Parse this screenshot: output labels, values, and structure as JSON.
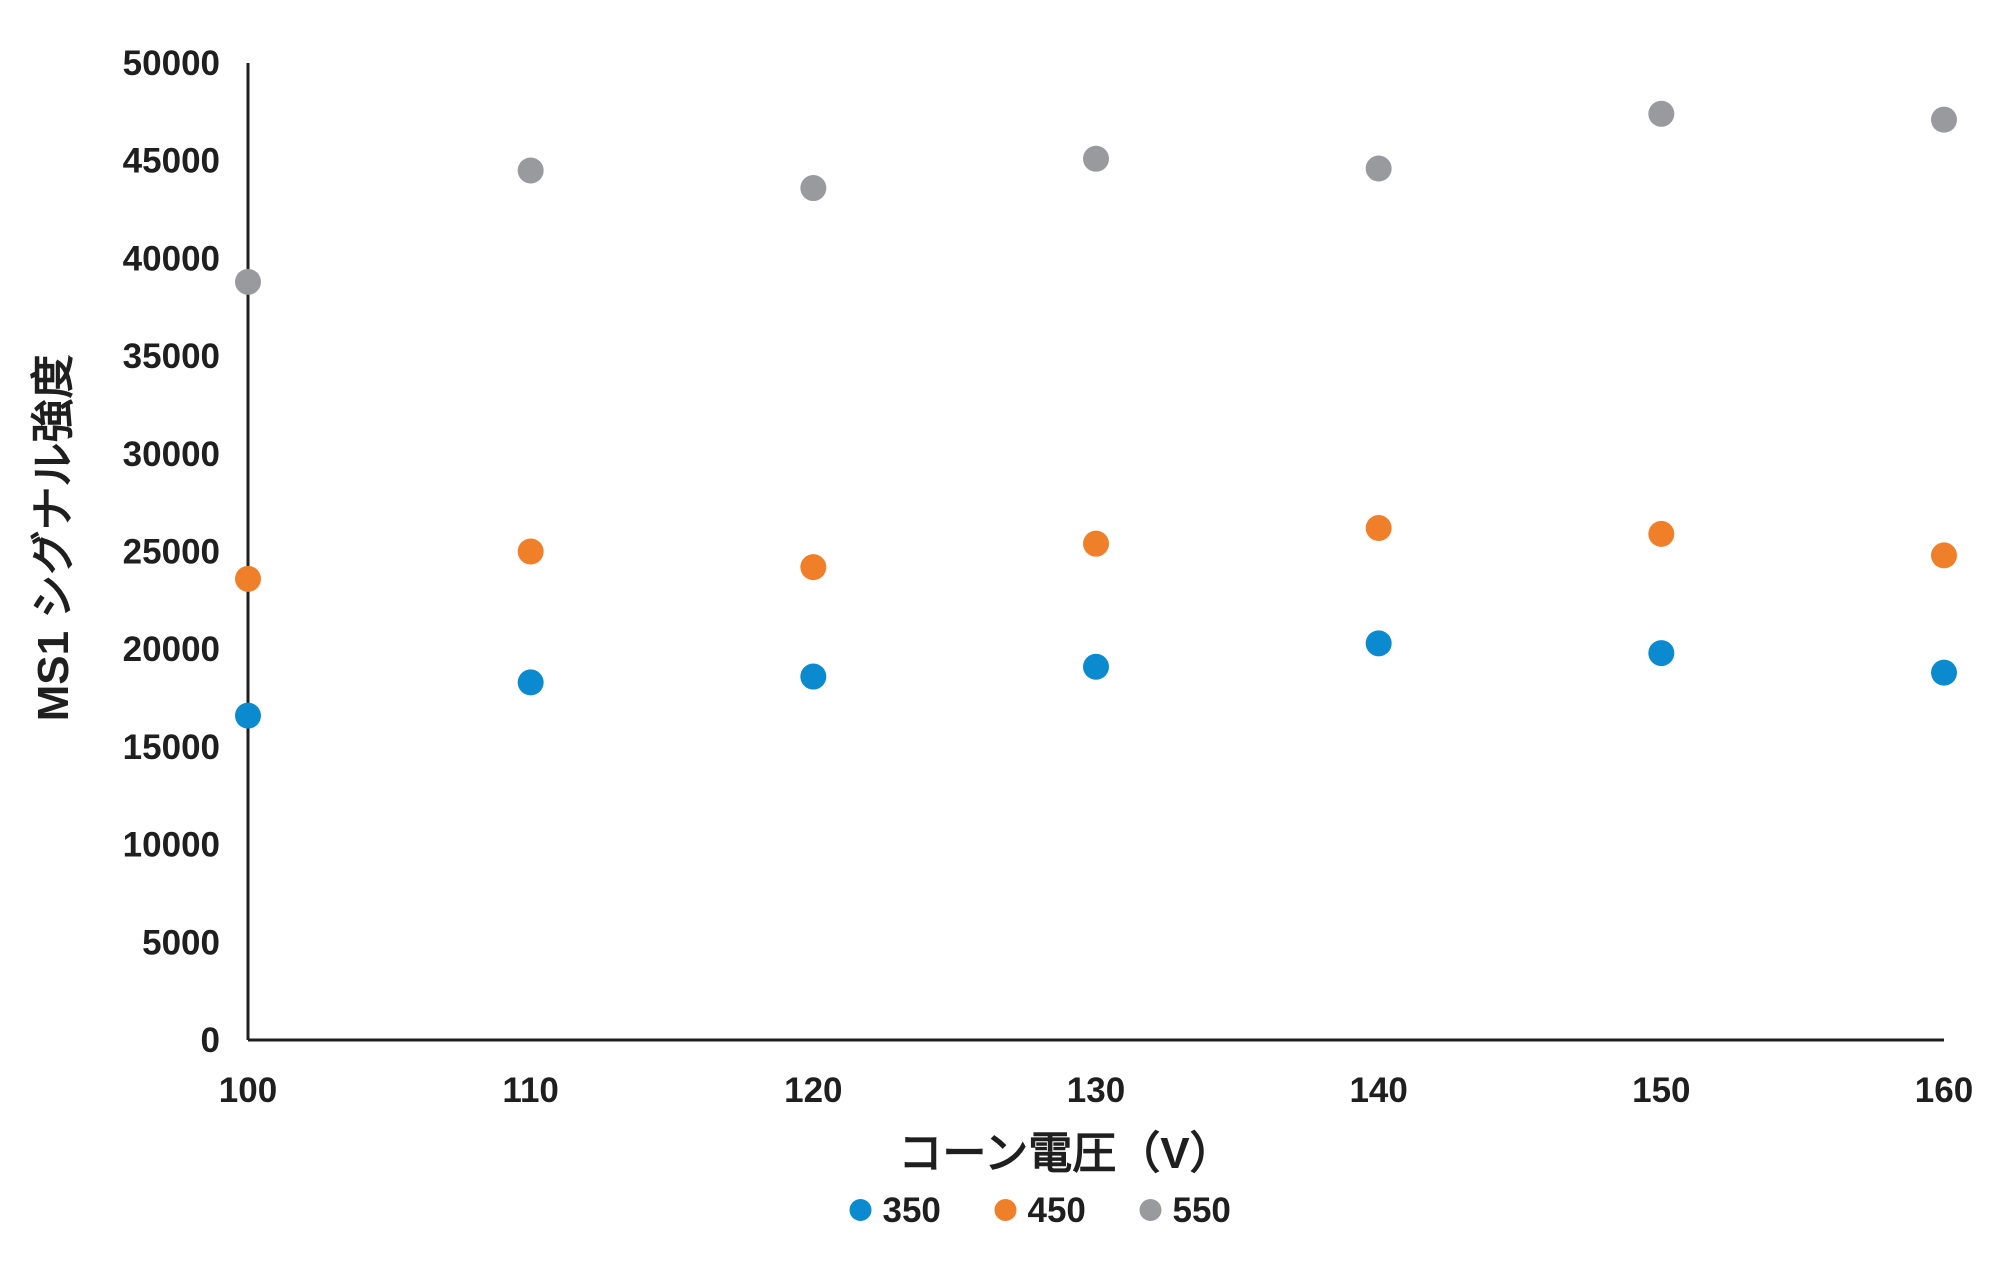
{
  "chart_data": {
    "type": "scatter",
    "title": "",
    "xlabel": "コーン電圧（V）",
    "ylabel": "MS1 シグナル強度",
    "xlim": [
      100,
      160
    ],
    "ylim": [
      0,
      50000
    ],
    "x_ticks": [
      100,
      110,
      120,
      130,
      140,
      150,
      160
    ],
    "y_ticks": [
      0,
      5000,
      10000,
      15000,
      20000,
      25000,
      30000,
      35000,
      40000,
      45000,
      50000
    ],
    "grid": false,
    "legend_position": "bottom",
    "x": [
      100,
      110,
      120,
      130,
      140,
      150,
      160
    ],
    "series": [
      {
        "name": "350",
        "color": "#0b8ad0",
        "values": [
          16600,
          18300,
          18600,
          19100,
          20300,
          19800,
          18800
        ]
      },
      {
        "name": "450",
        "color": "#f07f2a",
        "values": [
          23600,
          25000,
          24200,
          25400,
          26200,
          25900,
          24800
        ]
      },
      {
        "name": "550",
        "color": "#999a9e",
        "values": [
          38800,
          44500,
          43600,
          45100,
          44600,
          47400,
          47100
        ]
      }
    ]
  }
}
